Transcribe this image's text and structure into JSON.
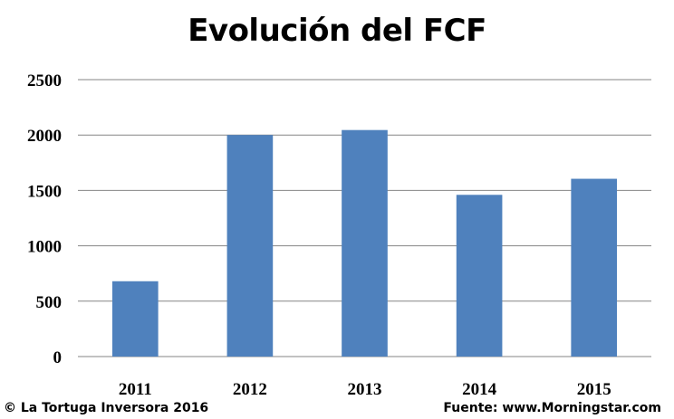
{
  "chart_data": {
    "type": "bar",
    "title": "Evolución del FCF",
    "categories": [
      "2011",
      "2012",
      "2013",
      "2014",
      "2015"
    ],
    "values": [
      680,
      2000,
      2045,
      1460,
      1605
    ],
    "ylim": [
      0,
      2500
    ],
    "yticks": [
      0,
      500,
      1000,
      1500,
      2000,
      2500
    ],
    "xlabel": "",
    "ylabel": "",
    "grid": true,
    "bar_color": "#4f81bd",
    "grid_color": "#868686"
  },
  "footer": {
    "left": "© La Tortuga Inversora 2016",
    "right": "Fuente: www.Morningstar.com"
  }
}
